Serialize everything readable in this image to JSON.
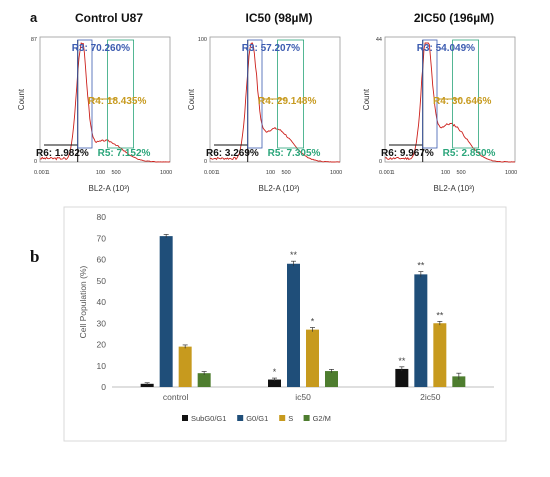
{
  "figure": {
    "panel_a_label": "a",
    "panel_b_label": "b"
  },
  "chart_data": [
    {
      "type": "histogram",
      "title": "Control U87",
      "xlabel": "BL2-A (10³)",
      "ylabel": "Count",
      "x_scale": "log",
      "x_ticks": [
        "0.001",
        "1000"
      ],
      "y_ticks": [
        "0",
        "87"
      ],
      "ylim": [
        0,
        87
      ],
      "gates": [
        {
          "name": "R3",
          "value_text": "R3: 70.260%",
          "color": "#3b5bb0"
        },
        {
          "name": "R4",
          "value_text": "R4: 18.435%",
          "color": "#c79a1e"
        },
        {
          "name": "R5",
          "value_text": "R5: 7.152%",
          "color": "#2aa57a"
        },
        {
          "name": "R6",
          "value_text": "R6: 1.982%",
          "color": "#111111"
        }
      ],
      "histogram_color": "#cc1f1a"
    },
    {
      "type": "histogram",
      "title": "IC50 (98µM)",
      "xlabel": "BL2-A (10³)",
      "ylabel": "Count",
      "x_scale": "log",
      "x_ticks": [
        "0.001",
        "1000"
      ],
      "y_ticks": [
        "0",
        "100"
      ],
      "ylim": [
        0,
        100
      ],
      "gates": [
        {
          "name": "R3",
          "value_text": "R3: 57.207%",
          "color": "#3b5bb0"
        },
        {
          "name": "R4",
          "value_text": "R4: 29.148%",
          "color": "#c79a1e"
        },
        {
          "name": "R5",
          "value_text": "R5: 7.305%",
          "color": "#2aa57a"
        },
        {
          "name": "R6",
          "value_text": "R6: 3.269%",
          "color": "#111111"
        }
      ],
      "histogram_color": "#cc1f1a"
    },
    {
      "type": "histogram",
      "title": "2IC50 (196µM)",
      "xlabel": "BL2-A (10³)",
      "ylabel": "Count",
      "x_scale": "log",
      "x_ticks": [
        "0.001",
        "1000"
      ],
      "y_ticks": [
        "0",
        "44"
      ],
      "ylim": [
        0,
        44
      ],
      "gates": [
        {
          "name": "R3",
          "value_text": "R3: 54.049%",
          "color": "#3b5bb0"
        },
        {
          "name": "R4",
          "value_text": "R4: 30.646%",
          "color": "#c79a1e"
        },
        {
          "name": "R5",
          "value_text": "R5: 2.850%",
          "color": "#2aa57a"
        },
        {
          "name": "R6",
          "value_text": "R6: 9.967%",
          "color": "#111111"
        }
      ],
      "histogram_color": "#cc1f1a"
    },
    {
      "type": "bar",
      "title": "",
      "xlabel": "",
      "ylabel": "Cell Population (%)",
      "ylim": [
        0,
        80
      ],
      "y_ticks": [
        0,
        10,
        20,
        30,
        40,
        50,
        60,
        70,
        80
      ],
      "grid": false,
      "legend_position": "bottom",
      "categories": [
        "control",
        "ic50",
        "2ic50"
      ],
      "series": [
        {
          "name": "SubG0/G1",
          "color": "#111111",
          "values": [
            1.5,
            3.5,
            8.5
          ],
          "errors": [
            0.5,
            0.7,
            1.0
          ],
          "significance": [
            "",
            "*",
            "**"
          ]
        },
        {
          "name": "G0/G1",
          "color": "#1f4e79",
          "values": [
            71,
            58,
            53
          ],
          "errors": [
            0.8,
            1.2,
            1.3
          ],
          "significance": [
            "",
            "**",
            "**"
          ]
        },
        {
          "name": "S",
          "color": "#c79a1e",
          "values": [
            19,
            27,
            30
          ],
          "errors": [
            0.8,
            1.0,
            0.9
          ],
          "significance": [
            "",
            "*",
            "**"
          ]
        },
        {
          "name": "G2/M",
          "color": "#4e7d2f",
          "values": [
            6.5,
            7.5,
            5
          ],
          "errors": [
            0.8,
            0.8,
            1.5
          ],
          "significance": [
            "",
            "",
            ""
          ]
        }
      ]
    }
  ]
}
